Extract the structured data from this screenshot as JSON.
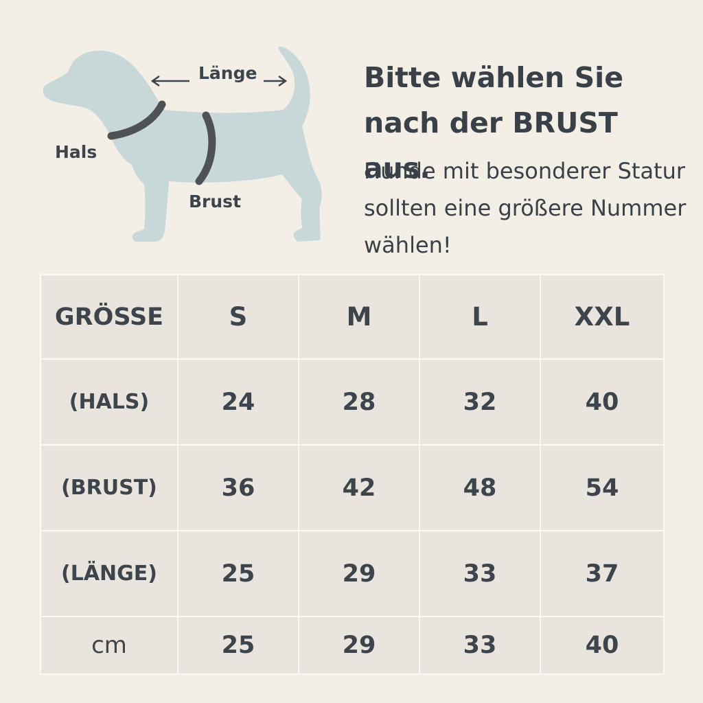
{
  "diagram": {
    "labels": {
      "length": "Länge",
      "neck": "Hals",
      "chest": "Brust"
    },
    "colors": {
      "dog": "#c8d8d9",
      "collar": "#4e5257",
      "arrow": "#3e444b"
    },
    "icon": "dog-silhouette"
  },
  "heading": "Bitte wählen Sie nach der BRUST aus.",
  "subtext": "Hunde mit besonderer Statur sollten eine größere Nummer wählen!",
  "table": {
    "header": [
      "GRÖSSE",
      "S",
      "M",
      "L",
      "XXL"
    ],
    "rows": [
      {
        "label": "(HALS)",
        "values": [
          "24",
          "28",
          "32",
          "40"
        ]
      },
      {
        "label": "(BRUST)",
        "values": [
          "36",
          "42",
          "48",
          "54"
        ]
      },
      {
        "label": "(LÄNGE)",
        "values": [
          "25",
          "29",
          "33",
          "37"
        ]
      },
      {
        "label": "cm",
        "values": [
          "25",
          "29",
          "33",
          "40"
        ]
      }
    ]
  },
  "colors": {
    "background": "#f3efe7",
    "cell": "#e9e5de",
    "text": "#3e444b"
  }
}
